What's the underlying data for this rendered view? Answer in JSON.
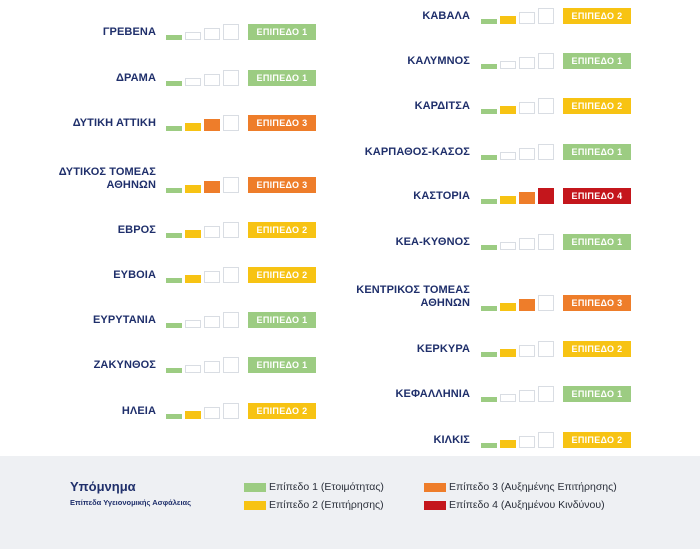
{
  "levels": {
    "1": {
      "badge": "ΕΠΙΠΕΔΟ 1",
      "color": "#9ccc82"
    },
    "2": {
      "badge": "ΕΠΙΠΕΔΟ 2",
      "color": "#f7c313"
    },
    "3": {
      "badge": "ΕΠΙΠΕΔΟ 3",
      "color": "#ee7d2a"
    },
    "4": {
      "badge": "ΕΠΙΠΕΔΟ 4",
      "color": "#c4161c"
    }
  },
  "columns": [
    [
      {
        "name": [
          "ΓΡΕΒΕΝΑ"
        ],
        "level": 1
      },
      {
        "name": [
          "ΔΡΑΜΑ"
        ],
        "level": 1
      },
      {
        "name": [
          "ΔΥΤΙΚΗ ΑΤΤΙΚΗ"
        ],
        "level": 3
      },
      {
        "name": [
          "ΔΥΤΙΚΟΣ ΤΟΜΕΑΣ",
          "ΑΘΗΝΩΝ"
        ],
        "level": 3
      },
      {
        "name": [
          "ΕΒΡΟΣ"
        ],
        "level": 2
      },
      {
        "name": [
          "ΕΥΒΟΙΑ"
        ],
        "level": 2
      },
      {
        "name": [
          "ΕΥΡΥΤΑΝΙΑ"
        ],
        "level": 1
      },
      {
        "name": [
          "ΖΑΚΥΝΘΟΣ"
        ],
        "level": 1
      },
      {
        "name": [
          "ΗΛΕΙΑ"
        ],
        "level": 2
      }
    ],
    [
      {
        "name": [
          "ΚΑΒΑΛΑ"
        ],
        "level": 2
      },
      {
        "name": [
          "ΚΑΛΥΜΝΟΣ"
        ],
        "level": 1
      },
      {
        "name": [
          "ΚΑΡΔΙΤΣΑ"
        ],
        "level": 2
      },
      {
        "name": [
          "ΚΑΡΠΑΘΟΣ-ΚΑΣΟΣ"
        ],
        "level": 1
      },
      {
        "name": [
          "ΚΑΣΤΟΡΙΑ"
        ],
        "level": 4
      },
      {
        "name": [
          "ΚΕΑ-ΚΥΘΝΟΣ"
        ],
        "level": 1
      },
      {
        "name": [
          "ΚΕΝΤΡΙΚΟΣ ΤΟΜΕΑΣ",
          "ΑΘΗΝΩΝ"
        ],
        "level": 3
      },
      {
        "name": [
          "ΚΕΡΚΥΡΑ"
        ],
        "level": 2
      },
      {
        "name": [
          "ΚΕΦΑΛΛΗΝΙΑ"
        ],
        "level": 1
      },
      {
        "name": [
          "ΚΙΛΚΙΣ"
        ],
        "level": 2
      }
    ]
  ],
  "legend": {
    "title": "Υπόμνημα",
    "subtitle": "Επίπεδα Υγειονομικής Ασφάλειας",
    "items": [
      {
        "label": "Επίπεδο 1 (Ετοιμότητας)",
        "color": "#9ccc82"
      },
      {
        "label": "Επίπεδο 2 (Επιτήρησης)",
        "color": "#f7c313"
      },
      {
        "label": "Επίπεδο 3 (Αυξημένης Επιτήρησης)",
        "color": "#ee7d2a"
      },
      {
        "label": "Επίπεδο 4 (Αυξημένου Κινδύνου)",
        "color": "#c4161c"
      }
    ]
  }
}
